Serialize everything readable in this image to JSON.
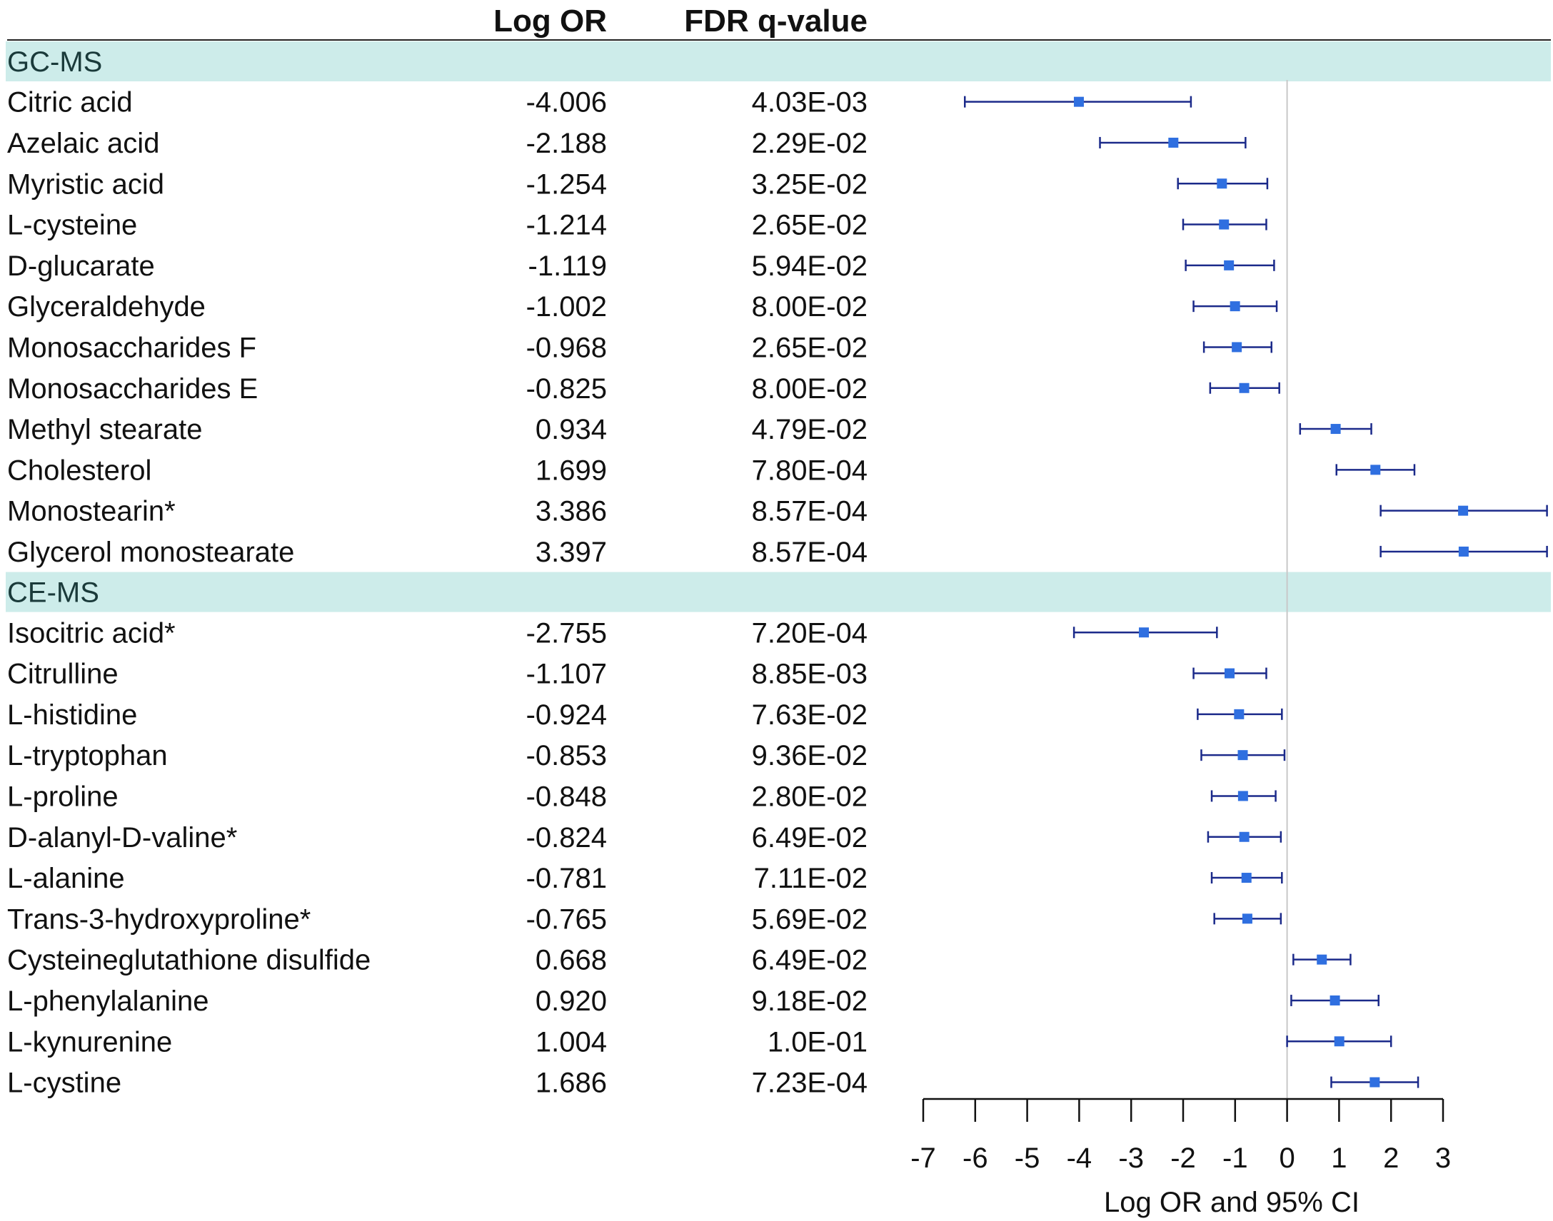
{
  "chart_data": {
    "type": "forest",
    "columns": {
      "logor_header": "Log OR",
      "fdr_header": "FDR q-value"
    },
    "sections": [
      {
        "name": "GC-MS",
        "rows": [
          {
            "label": "Citric acid",
            "logor_text": "-4.006",
            "fdr_text": "4.03E-03",
            "est": -4.006,
            "lo": -6.2,
            "hi": -1.85
          },
          {
            "label": "Azelaic acid",
            "logor_text": "-2.188",
            "fdr_text": "2.29E-02",
            "est": -2.188,
            "lo": -3.6,
            "hi": -0.8
          },
          {
            "label": "Myristic acid",
            "logor_text": "-1.254",
            "fdr_text": "3.25E-02",
            "est": -1.254,
            "lo": -2.1,
            "hi": -0.38
          },
          {
            "label": "L-cysteine",
            "logor_text": "-1.214",
            "fdr_text": "2.65E-02",
            "est": -1.214,
            "lo": -2.0,
            "hi": -0.4
          },
          {
            "label": "D-glucarate",
            "logor_text": "-1.119",
            "fdr_text": "5.94E-02",
            "est": -1.119,
            "lo": -1.95,
            "hi": -0.25
          },
          {
            "label": "Glyceraldehyde",
            "logor_text": "-1.002",
            "fdr_text": "8.00E-02",
            "est": -1.002,
            "lo": -1.8,
            "hi": -0.2
          },
          {
            "label": "Monosaccharides F",
            "logor_text": "-0.968",
            "fdr_text": "2.65E-02",
            "est": -0.968,
            "lo": -1.6,
            "hi": -0.3
          },
          {
            "label": "Monosaccharides E",
            "logor_text": "-0.825",
            "fdr_text": "8.00E-02",
            "est": -0.825,
            "lo": -1.48,
            "hi": -0.15
          },
          {
            "label": "Methyl stearate",
            "logor_text": "0.934",
            "fdr_text": "4.79E-02",
            "est": 0.934,
            "lo": 0.25,
            "hi": 1.62
          },
          {
            "label": "Cholesterol",
            "logor_text": "1.699",
            "fdr_text": "7.80E-04",
            "est": 1.699,
            "lo": 0.95,
            "hi": 2.45
          },
          {
            "label": "Monostearin*",
            "logor_text": "3.386",
            "fdr_text": "8.57E-04",
            "est": 3.386,
            "lo": 1.8,
            "hi": 5.0
          },
          {
            "label": "Glycerol monostearate",
            "logor_text": "3.397",
            "fdr_text": "8.57E-04",
            "est": 3.397,
            "lo": 1.8,
            "hi": 5.0
          }
        ]
      },
      {
        "name": "CE-MS",
        "rows": [
          {
            "label": "Isocitric acid*",
            "logor_text": "-2.755",
            "fdr_text": "7.20E-04",
            "est": -2.755,
            "lo": -4.1,
            "hi": -1.35
          },
          {
            "label": "Citrulline",
            "logor_text": "-1.107",
            "fdr_text": "8.85E-03",
            "est": -1.107,
            "lo": -1.8,
            "hi": -0.4
          },
          {
            "label": "L-histidine",
            "logor_text": "-0.924",
            "fdr_text": "7.63E-02",
            "est": -0.924,
            "lo": -1.72,
            "hi": -0.1
          },
          {
            "label": "L-tryptophan",
            "logor_text": "-0.853",
            "fdr_text": "9.36E-02",
            "est": -0.853,
            "lo": -1.65,
            "hi": -0.05
          },
          {
            "label": "L-proline",
            "logor_text": "-0.848",
            "fdr_text": "2.80E-02",
            "est": -0.848,
            "lo": -1.45,
            "hi": -0.22
          },
          {
            "label": "D-alanyl-D-valine*",
            "logor_text": "-0.824",
            "fdr_text": "6.49E-02",
            "est": -0.824,
            "lo": -1.52,
            "hi": -0.12
          },
          {
            "label": "L-alanine",
            "logor_text": "-0.781",
            "fdr_text": "7.11E-02",
            "est": -0.781,
            "lo": -1.45,
            "hi": -0.1
          },
          {
            "label": "Trans-3-hydroxyproline*",
            "logor_text": "-0.765",
            "fdr_text": "5.69E-02",
            "est": -0.765,
            "lo": -1.4,
            "hi": -0.12
          },
          {
            "label": "Cysteineglutathione disulfide",
            "logor_text": "0.668",
            "fdr_text": "6.49E-02",
            "est": 0.668,
            "lo": 0.12,
            "hi": 1.22
          },
          {
            "label": "L-phenylalanine",
            "logor_text": "0.920",
            "fdr_text": "9.18E-02",
            "est": 0.92,
            "lo": 0.08,
            "hi": 1.76
          },
          {
            "label": "L-kynurenine",
            "logor_text": "1.004",
            "fdr_text": "1.0E-01",
            "est": 1.004,
            "lo": 0.0,
            "hi": 2.0
          },
          {
            "label": "L-cystine",
            "logor_text": "1.686",
            "fdr_text": "7.23E-04",
            "est": 1.686,
            "lo": 0.85,
            "hi": 2.52
          }
        ]
      }
    ],
    "x_axis": {
      "label": "Log OR and 95% CI",
      "ticks": [
        -7,
        -6,
        -5,
        -4,
        -3,
        -2,
        -1,
        0,
        1,
        2,
        3
      ],
      "tick_labels": [
        "-7",
        "-6",
        "-5",
        "-4",
        "-3",
        "-2",
        "-1",
        "0",
        "1",
        "2",
        "3"
      ],
      "range": [
        -7,
        3
      ]
    },
    "colors": {
      "section_band": "#cdecea",
      "ci_line": "#1b2a8a",
      "marker": "#2f6fe0",
      "reference_line": "#c8c8c8",
      "text": "#111111"
    }
  }
}
